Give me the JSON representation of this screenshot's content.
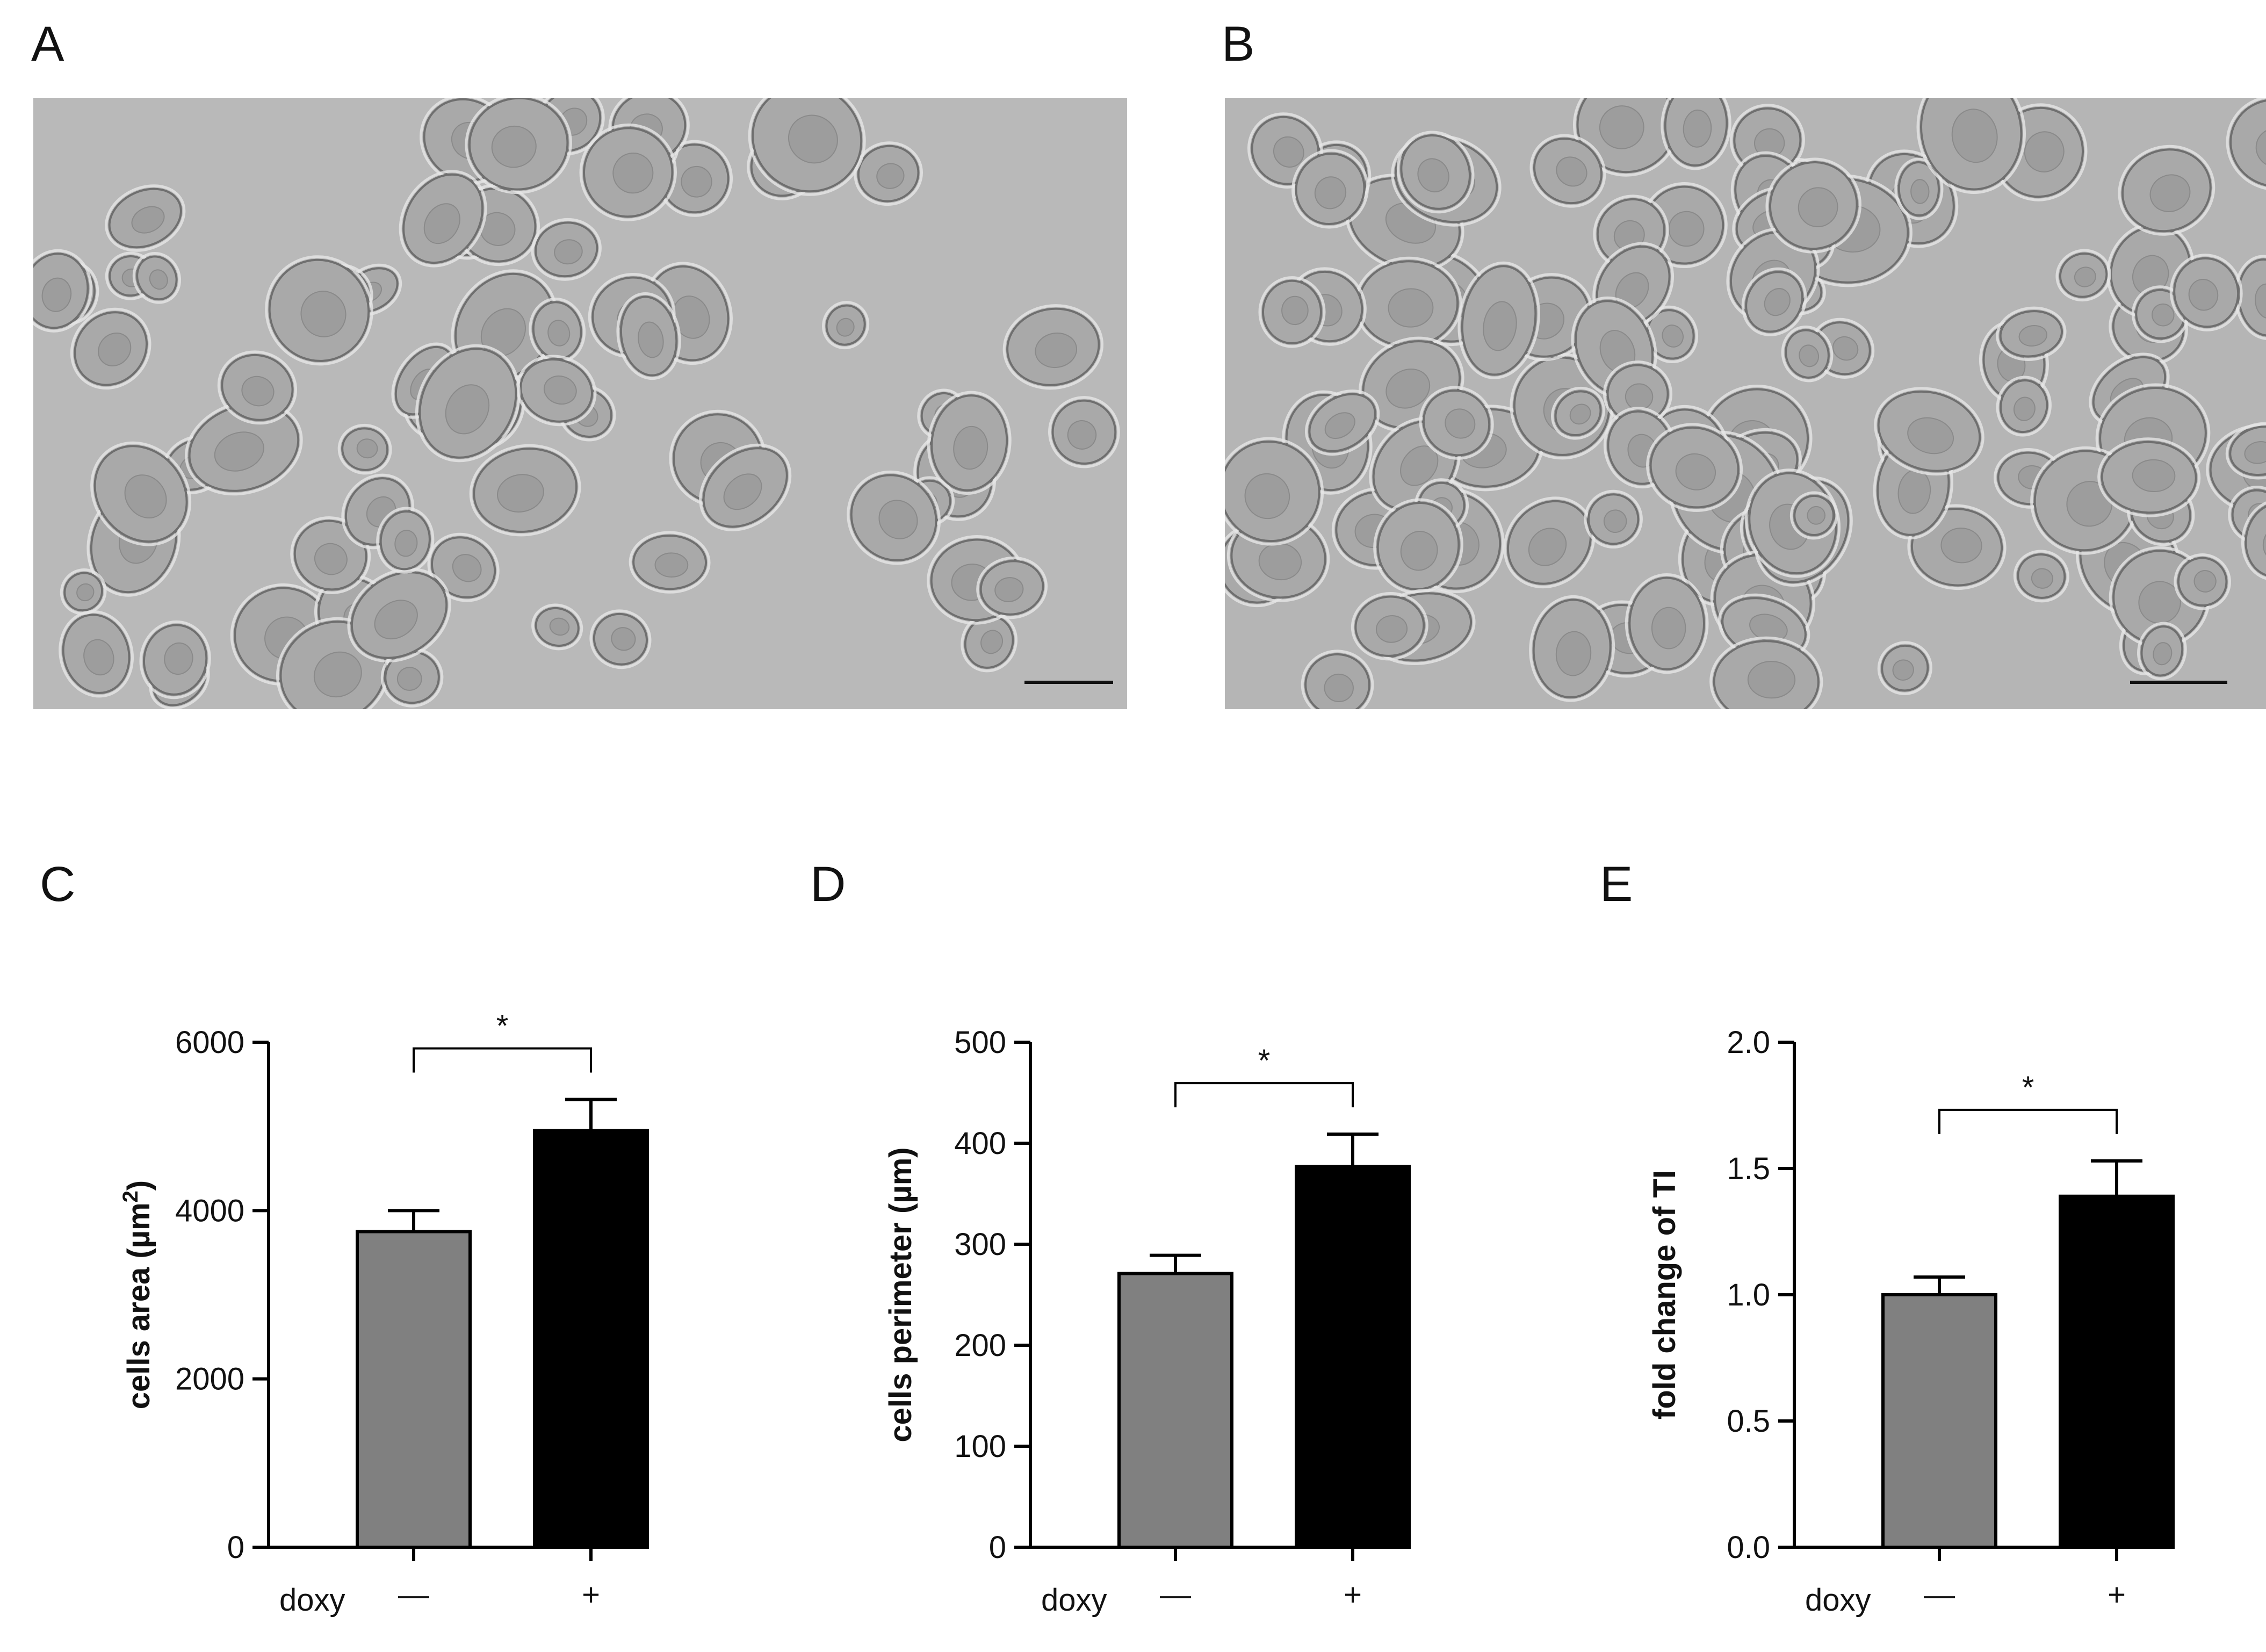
{
  "panels": {
    "a": "A",
    "b": "B",
    "c": "C",
    "d": "D",
    "e": "E"
  },
  "micrographs": [
    {
      "panel": "A",
      "kind": "phase-contrast micrograph",
      "background": "#b9b9b9"
    },
    {
      "panel": "B",
      "kind": "phase-contrast micrograph",
      "background": "#b5b5b5"
    }
  ],
  "colors": {
    "control_bar": "#808080",
    "doxy_bar": "#000000",
    "axis": "#000000"
  },
  "chart_data": [
    {
      "type": "bar",
      "panel": "C",
      "categories": [
        "—",
        "+"
      ],
      "group_label": "doxy",
      "values": [
        3750,
        4950
      ],
      "errors": [
        250,
        370
      ],
      "colors": [
        "#808080",
        "#000000"
      ],
      "ylabel_pre": "cells area (µm",
      "ylabel_sup": "2",
      "ylabel_post": ")",
      "ylim": [
        0,
        6000
      ],
      "yticks": [
        0,
        2000,
        4000,
        6000
      ],
      "yticklabels": [
        "0",
        "2000",
        "4000",
        "6000"
      ],
      "significance": "*",
      "grid": false
    },
    {
      "type": "bar",
      "panel": "D",
      "categories": [
        "—",
        "+"
      ],
      "group_label": "doxy",
      "values": [
        271,
        377
      ],
      "errors": [
        18,
        32
      ],
      "colors": [
        "#808080",
        "#000000"
      ],
      "ylabel_pre": "cells perimeter (µm)",
      "ylabel_sup": "",
      "ylabel_post": "",
      "ylim": [
        0,
        500
      ],
      "yticks": [
        0,
        100,
        200,
        300,
        400,
        500
      ],
      "yticklabels": [
        "0",
        "100",
        "200",
        "300",
        "400",
        "500"
      ],
      "significance": "*",
      "grid": false
    },
    {
      "type": "bar",
      "panel": "E",
      "categories": [
        "—",
        "+"
      ],
      "group_label": "doxy",
      "values": [
        1.0,
        1.39
      ],
      "errors": [
        0.07,
        0.14
      ],
      "colors": [
        "#808080",
        "#000000"
      ],
      "ylabel_pre": "fold change of TI",
      "ylabel_sup": "",
      "ylabel_post": "",
      "ylim": [
        0,
        2.0
      ],
      "yticks": [
        0,
        0.5,
        1.0,
        1.5,
        2.0
      ],
      "yticklabels": [
        "0.0",
        "0.5",
        "1.0",
        "1.5",
        "2.0"
      ],
      "significance": "*",
      "grid": false
    }
  ]
}
